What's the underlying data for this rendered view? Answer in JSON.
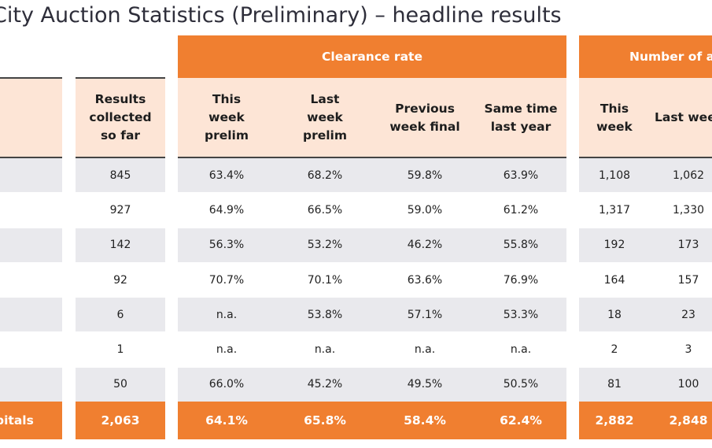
{
  "title": "City Auction Statistics (Preliminary) – headline results",
  "groups": {
    "clearance": "Clearance rate",
    "number": "Number of a"
  },
  "headers": {
    "results": "Results collected so far",
    "this_week": "This week prelim",
    "last_week": "Last week prelim",
    "previous": "Previous week final",
    "same_time": "Same time last year",
    "num_this": "This week",
    "num_last": "Last wee"
  },
  "rows": [
    {
      "results": "845",
      "tw": "63.4%",
      "lw": "68.2%",
      "pw": "59.8%",
      "ly": "63.9%",
      "nt": "1,108",
      "nl": "1,062"
    },
    {
      "results": "927",
      "tw": "64.9%",
      "lw": "66.5%",
      "pw": "59.0%",
      "ly": "61.2%",
      "nt": "1,317",
      "nl": "1,330"
    },
    {
      "results": "142",
      "tw": "56.3%",
      "lw": "53.2%",
      "pw": "46.2%",
      "ly": "55.8%",
      "nt": "192",
      "nl": "173"
    },
    {
      "results": "92",
      "tw": "70.7%",
      "lw": "70.1%",
      "pw": "63.6%",
      "ly": "76.9%",
      "nt": "164",
      "nl": "157"
    },
    {
      "results": "6",
      "tw": "n.a.",
      "lw": "53.8%",
      "pw": "57.1%",
      "ly": "53.3%",
      "nt": "18",
      "nl": "23"
    },
    {
      "results": "1",
      "tw": "n.a.",
      "lw": "n.a.",
      "pw": "n.a.",
      "ly": "n.a.",
      "nt": "2",
      "nl": "3"
    },
    {
      "results": "50",
      "tw": "66.0%",
      "lw": "45.2%",
      "pw": "49.5%",
      "ly": "50.5%",
      "nt": "81",
      "nl": "100"
    }
  ],
  "total": {
    "label": "pitals",
    "results": "2,063",
    "tw": "64.1%",
    "lw": "65.8%",
    "pw": "58.4%",
    "ly": "62.4%",
    "nt": "2,882",
    "nl": "2,848"
  },
  "colors": {
    "accent": "#f07f30",
    "header_bg": "#fde5d6",
    "row_alt": "#e9e9ed"
  }
}
